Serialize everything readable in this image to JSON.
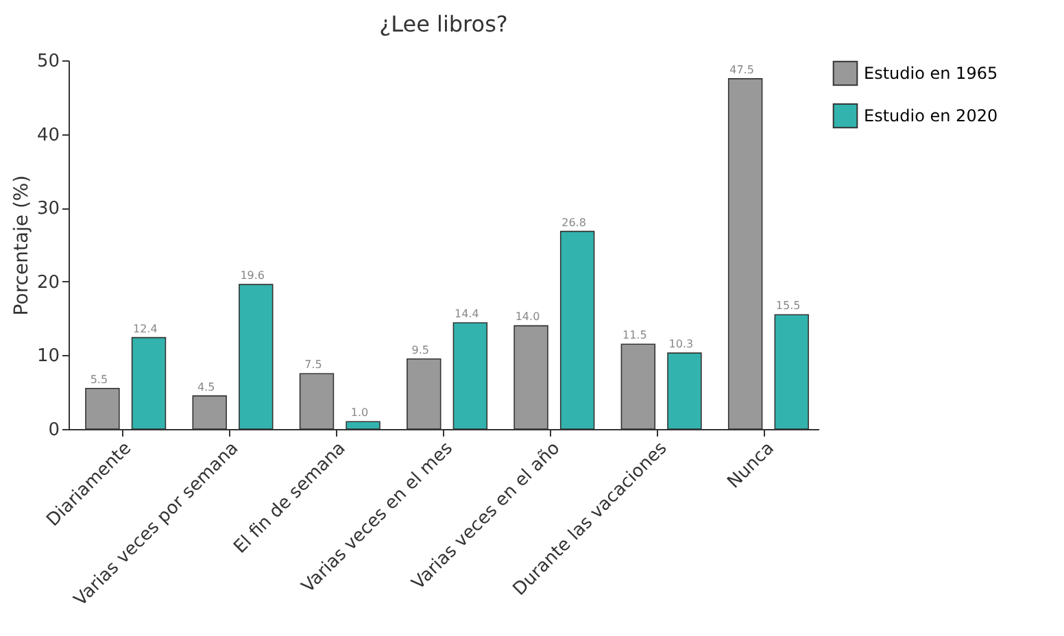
{
  "chart_data": {
    "type": "bar",
    "title": "¿Lee libros?",
    "ylabel": "Porcentaje (%)",
    "categories": [
      "Diariamente",
      "Varias veces por semana",
      "El fin de semana",
      "Varias veces en el mes",
      "Varias veces en el año",
      "Durante las vacaciones",
      "Nunca"
    ],
    "series": [
      {
        "name": "Estudio en 1965",
        "color": "#999999",
        "values": [
          5.5,
          4.5,
          7.5,
          9.5,
          14.0,
          11.5,
          47.5
        ]
      },
      {
        "name": "Estudio en 2020",
        "color": "#33b3ae",
        "values": [
          12.4,
          19.6,
          1.0,
          14.4,
          26.8,
          10.3,
          15.5
        ]
      }
    ],
    "value_labels": [
      [
        "5.5",
        "4.5",
        "7.5",
        "9.5",
        "14.0",
        "11.5",
        "47.5"
      ],
      [
        "12.4",
        "19.6",
        "1.0",
        "14.4",
        "26.8",
        "10.3",
        "15.5"
      ]
    ],
    "ylim": [
      0,
      50
    ],
    "yticks": [
      0,
      10,
      20,
      30,
      40,
      50
    ],
    "grid": false,
    "legend": "top right"
  }
}
